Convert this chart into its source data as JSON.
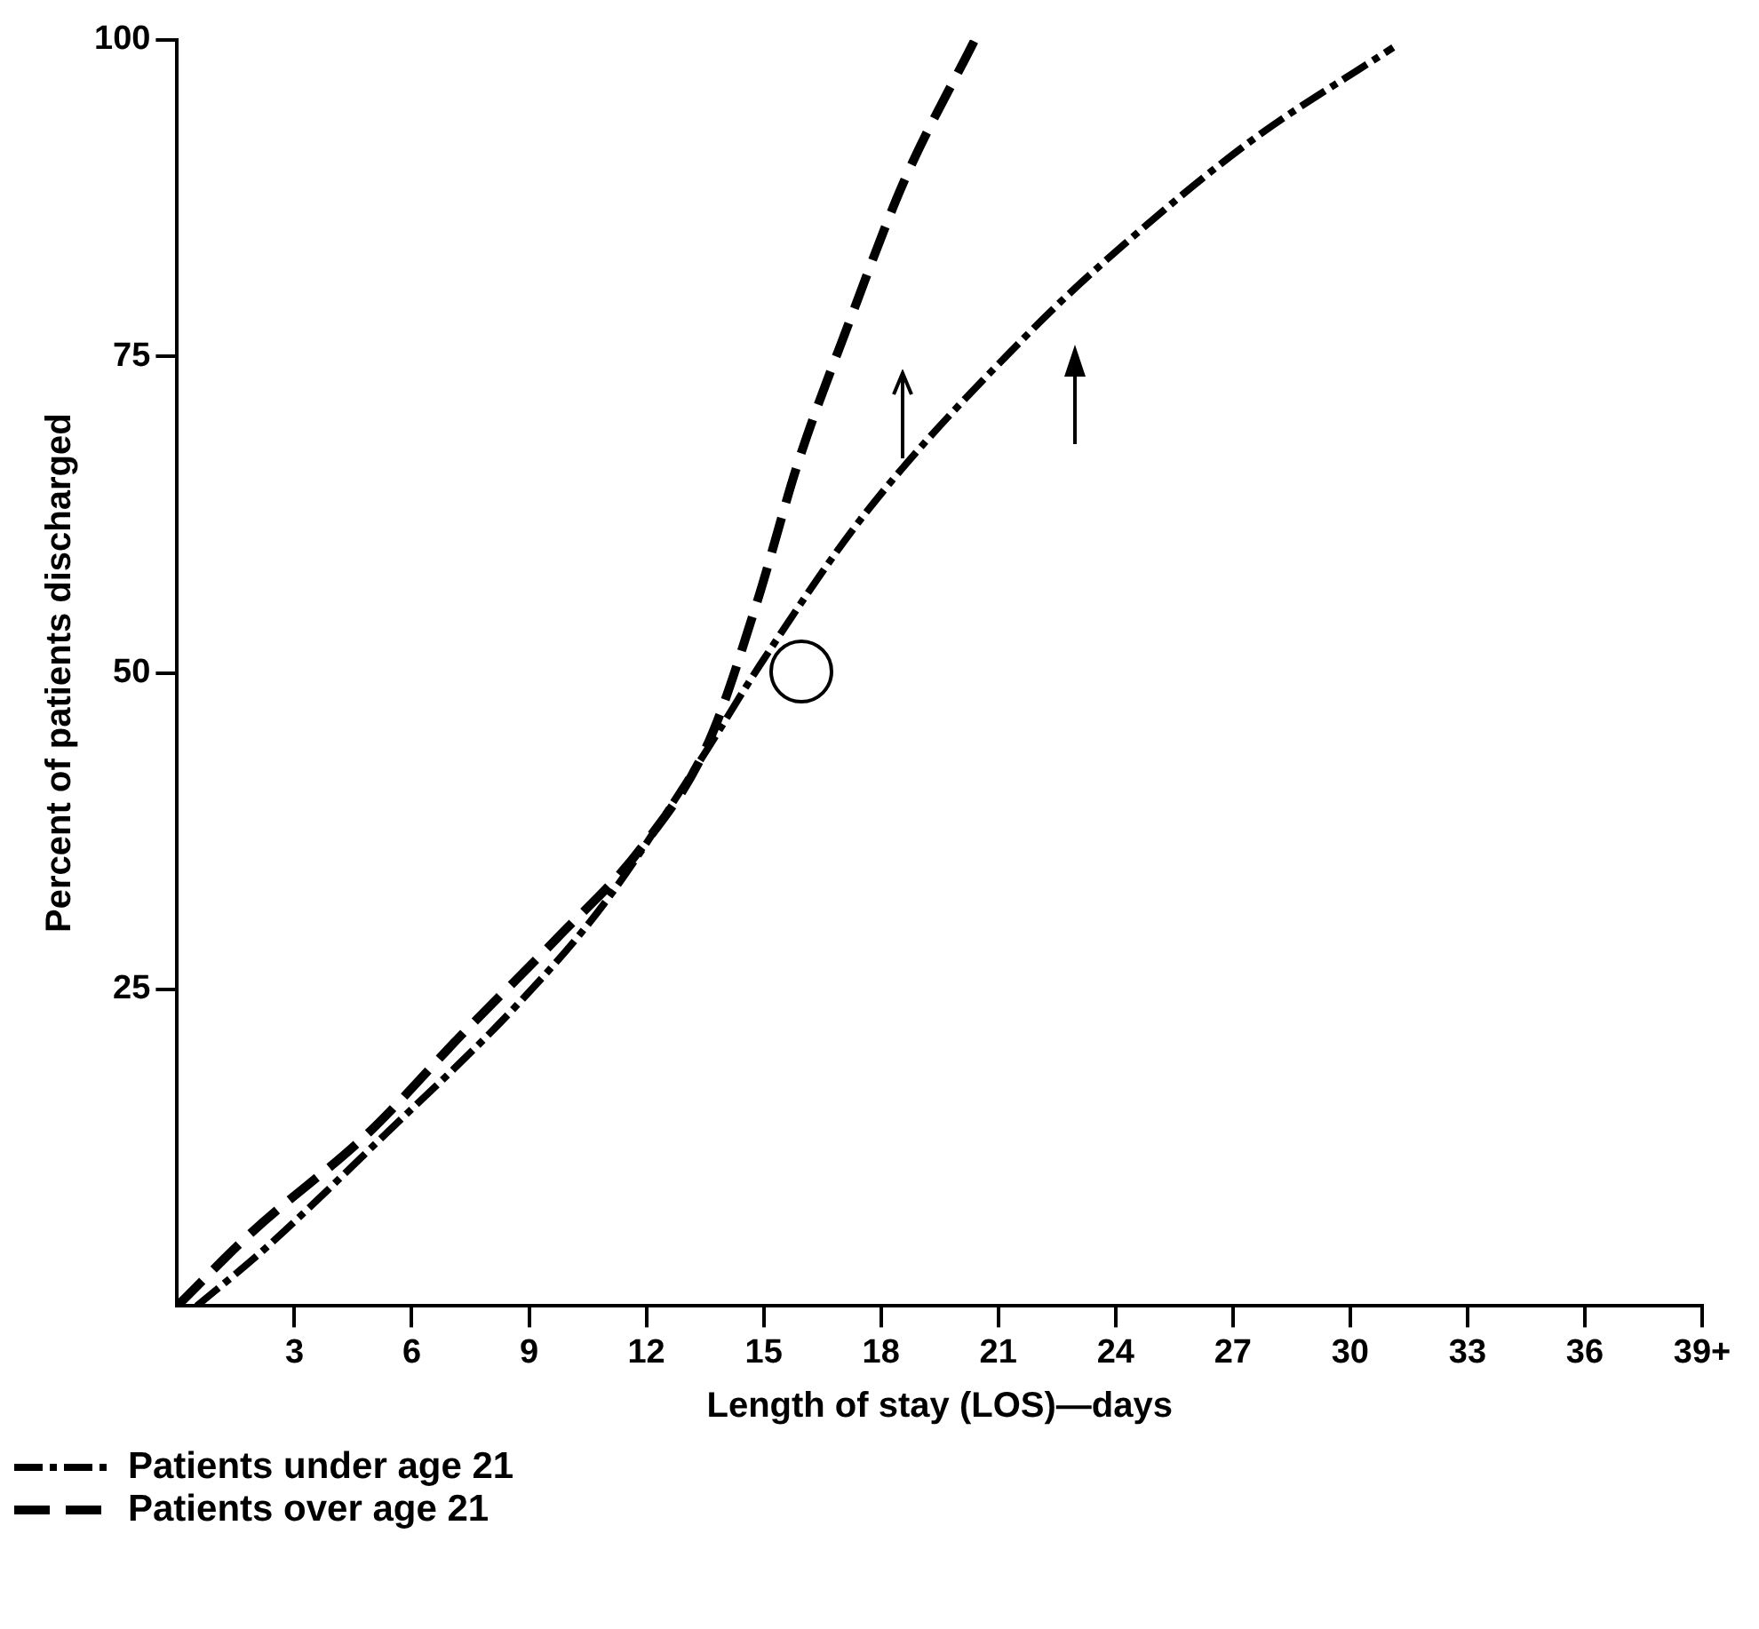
{
  "chart_data": {
    "type": "line",
    "xlabel": "Length of stay (LOS)—days",
    "ylabel": "Percent of patients discharged",
    "xlim": [
      0,
      39
    ],
    "xticks": [
      3,
      6,
      9,
      12,
      15,
      18,
      21,
      24,
      27,
      30,
      33,
      36,
      {
        "value": 39,
        "label": "39+"
      }
    ],
    "ylim": [
      0,
      100
    ],
    "yticks": [
      25,
      50,
      75,
      100
    ],
    "grid": false,
    "legend": "bottom left",
    "marker": "none",
    "series": [
      {
        "name": "Patients under age 21",
        "color": "#000000",
        "line_style": "dashdot",
        "x": [
          0.5,
          2.2,
          5.2,
          8.7,
          10.9,
          13.4,
          14.9,
          17.6,
          21.8,
          24.2,
          27.5,
          31.1
        ],
        "values": [
          0,
          4.4,
          13.2,
          23.8,
          31.7,
          43.2,
          50.6,
          62.6,
          76.9,
          83.8,
          92.1,
          99.4
        ]
      },
      {
        "name": "Patients over age 21",
        "color": "#000000",
        "line_style": "dashed",
        "x": [
          0,
          1.9,
          4.9,
          7.3,
          9.7,
          11.9,
          13.6,
          14.8,
          15.9,
          17.2,
          18.6,
          20.4
        ],
        "values": [
          0,
          5.8,
          13.7,
          21.5,
          29,
          36.3,
          44.6,
          55.3,
          66.8,
          77.8,
          88.9,
          100
        ]
      }
    ]
  }
}
